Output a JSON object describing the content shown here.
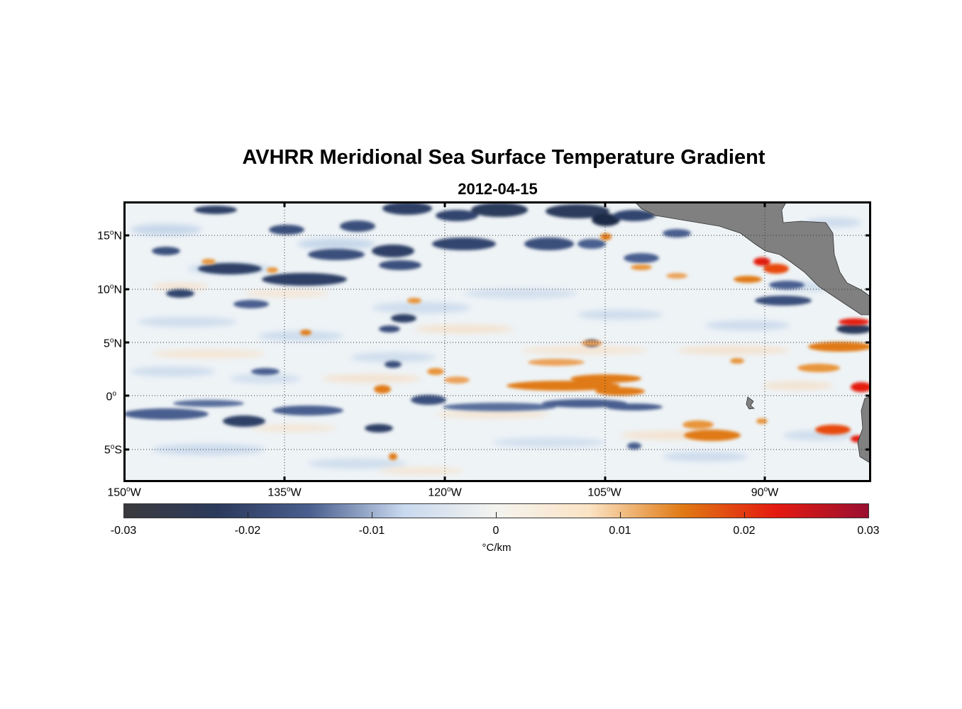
{
  "title": "AVHRR Meridional Sea Surface Temperature Gradient",
  "subtitle": "2012-04-15",
  "map": {
    "lon_range": [
      -150,
      -80
    ],
    "lat_range": [
      -8,
      18
    ],
    "lat_ticks": [
      {
        "value": 15,
        "label": "15",
        "hemi": "N"
      },
      {
        "value": 10,
        "label": "10",
        "hemi": "N"
      },
      {
        "value": 5,
        "label": "5",
        "hemi": "N"
      },
      {
        "value": 0,
        "label": "0",
        "hemi": ""
      },
      {
        "value": -5,
        "label": "5",
        "hemi": "S"
      }
    ],
    "lon_ticks": [
      {
        "value": -150,
        "label": "150",
        "hemi": "W"
      },
      {
        "value": -135,
        "label": "135",
        "hemi": "W"
      },
      {
        "value": -120,
        "label": "120",
        "hemi": "W"
      },
      {
        "value": -105,
        "label": "105",
        "hemi": "W"
      },
      {
        "value": -90,
        "label": "90",
        "hemi": "W"
      }
    ],
    "land_color": "#808080",
    "grid": "dotted"
  },
  "colorbar": {
    "min": -0.03,
    "max": 0.03,
    "ticks": [
      "-0.03",
      "-0.02",
      "-0.01",
      "0",
      "0.01",
      "0.02",
      "0.03"
    ],
    "unit": "°C/km",
    "colors": [
      "#3a3a3d",
      "#2b3a5c",
      "#4a5f8f",
      "#c8d8ee",
      "#f4f4f0",
      "#fbe3c4",
      "#e07a14",
      "#e41a10",
      "#9a1030"
    ]
  }
}
